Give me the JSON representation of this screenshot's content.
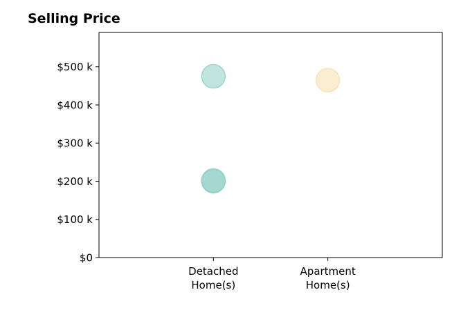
{
  "chart_data": {
    "type": "scatter",
    "title": "Selling Price",
    "xlabel": "",
    "ylabel": "",
    "categories": [
      "Detached Home(s)",
      "Apartment Home(s)"
    ],
    "x_tick_labels": [
      [
        "Detached",
        "Home(s)"
      ],
      [
        "Apartment",
        "Home(s)"
      ]
    ],
    "ylim": [
      0,
      590
    ],
    "y_ticks": [
      0,
      100,
      200,
      300,
      400,
      500
    ],
    "y_tick_labels": [
      "$0",
      "$100 k",
      "$200 k",
      "$300 k",
      "$400 k",
      "$500 k"
    ],
    "grid": false,
    "points": [
      {
        "category": "Detached Home(s)",
        "y": 475,
        "color": "#8ecdc5"
      },
      {
        "category": "Detached Home(s)",
        "y": 200,
        "color": "#8ecdc5"
      },
      {
        "category": "Detached Home(s)",
        "y": 202,
        "color": "#8ecdc5"
      },
      {
        "category": "Apartment Home(s)",
        "y": 465,
        "color": "#f5dfad"
      }
    ]
  }
}
